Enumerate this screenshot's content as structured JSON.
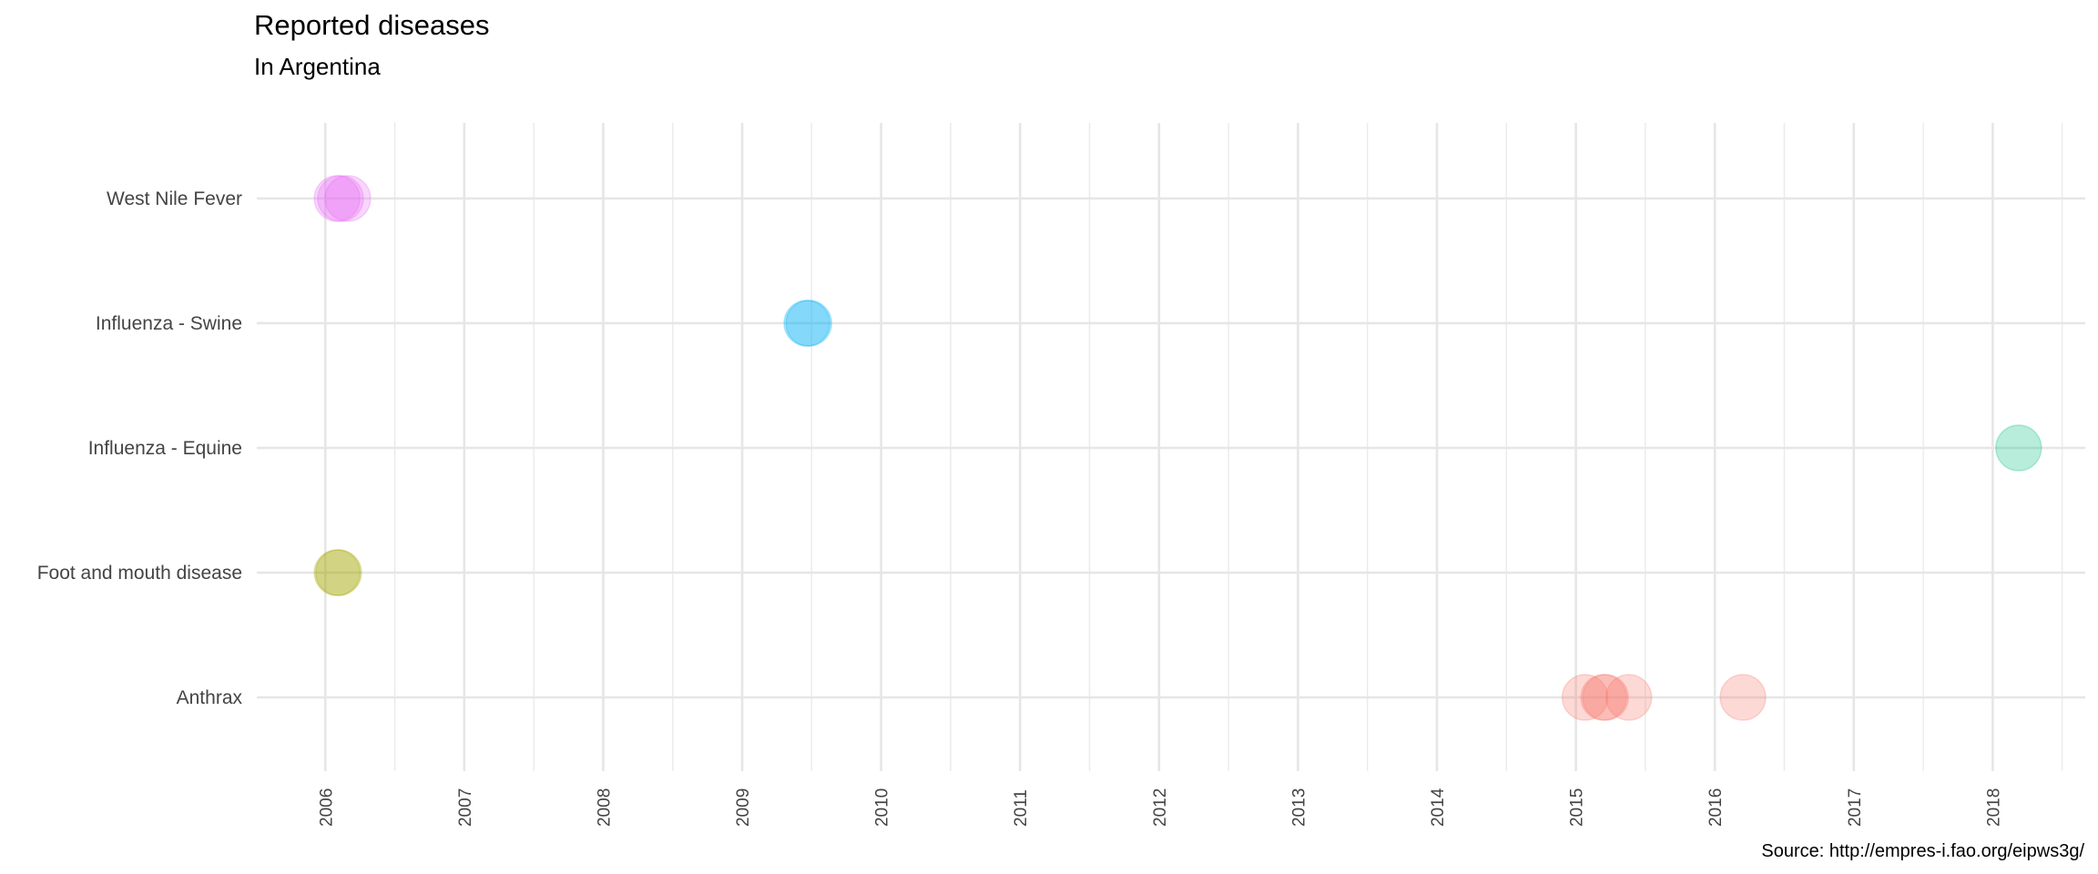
{
  "chart_data": {
    "type": "scatter",
    "title": "Reported diseases",
    "subtitle": "In Argentina",
    "caption": "Source: http://empres-i.fao.org/eipws3g/",
    "xlabel": "",
    "ylabel": "",
    "x_ticks": [
      "2006",
      "2007",
      "2008",
      "2009",
      "2010",
      "2011",
      "2012",
      "2013",
      "2014",
      "2015",
      "2016",
      "2017",
      "2018"
    ],
    "xlim": [
      "2005-07-05",
      "2018-09-01"
    ],
    "y_categories": [
      "Anthrax",
      "Foot and mouth disease",
      "Influenza - Equine",
      "Influenza - Swine",
      "West Nile Fever"
    ],
    "grid": true,
    "legend": "none",
    "series": [
      {
        "category": "West Nile Fever",
        "color": "#E76BF3",
        "points": [
          {
            "x": "2006-02-01"
          },
          {
            "x": "2006-02-10"
          },
          {
            "x": "2006-03-01"
          }
        ]
      },
      {
        "category": "Influenza - Swine",
        "color": "#00B0F6",
        "points": [
          {
            "x": "2009-06-20"
          },
          {
            "x": "2009-06-25"
          }
        ]
      },
      {
        "category": "Influenza - Equine",
        "color": "#00BF7D",
        "points": [
          {
            "x": "2018-03-10"
          }
        ]
      },
      {
        "category": "Foot and mouth disease",
        "color": "#A3A500",
        "points": [
          {
            "x": "2006-02-01"
          },
          {
            "x": "2006-02-05"
          }
        ]
      },
      {
        "category": "Anthrax",
        "color": "#F8766D",
        "points": [
          {
            "x": "2015-01-25"
          },
          {
            "x": "2015-03-15"
          },
          {
            "x": "2015-03-20"
          },
          {
            "x": "2015-05-20"
          },
          {
            "x": "2016-03-15"
          }
        ]
      }
    ]
  }
}
